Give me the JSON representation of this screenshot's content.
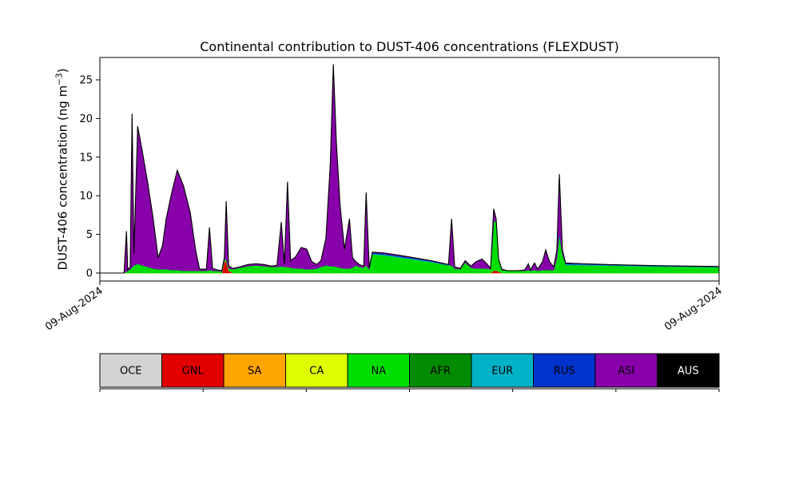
{
  "chart_data": {
    "type": "area",
    "stacked": true,
    "title": "Continental contribution to DUST-406 concentrations (FLEXDUST)",
    "xlabel": "",
    "ylabel": "DUST-406 concentration (ng m^-3)",
    "ylabel_parts": {
      "prefix": "DUST-406 concentration (ng m",
      "sup": "−3",
      "suffix": ")"
    },
    "x_tick_labels": [
      "09-Aug-2024",
      "09-Aug-2024"
    ],
    "yticks": [
      0,
      5,
      10,
      15,
      20,
      25
    ],
    "ylim": [
      -1,
      28
    ],
    "grid": false,
    "legend_position": "bottom",
    "x": [
      0.0,
      0.039,
      0.043,
      0.045,
      0.049,
      0.052,
      0.055,
      0.061,
      0.068,
      0.077,
      0.086,
      0.094,
      0.101,
      0.107,
      0.116,
      0.125,
      0.135,
      0.146,
      0.155,
      0.161,
      0.172,
      0.177,
      0.182,
      0.19,
      0.197,
      0.201,
      0.204,
      0.208,
      0.215,
      0.226,
      0.239,
      0.252,
      0.265,
      0.277,
      0.286,
      0.293,
      0.298,
      0.303,
      0.308,
      0.316,
      0.325,
      0.334,
      0.342,
      0.35,
      0.357,
      0.365,
      0.372,
      0.377,
      0.382,
      0.388,
      0.395,
      0.403,
      0.408,
      0.413,
      0.419,
      0.426,
      0.43,
      0.435,
      0.44,
      0.458,
      0.484,
      0.51,
      0.535,
      0.555,
      0.563,
      0.568,
      0.573,
      0.582,
      0.59,
      0.599,
      0.608,
      0.617,
      0.625,
      0.631,
      0.636,
      0.64,
      0.644,
      0.649,
      0.659,
      0.675,
      0.686,
      0.692,
      0.695,
      0.702,
      0.707,
      0.715,
      0.72,
      0.726,
      0.733,
      0.738,
      0.742,
      0.747,
      0.752,
      0.781,
      0.819,
      0.858,
      0.897,
      0.935,
      0.968,
      1.0
    ],
    "series": [
      {
        "name": "OCE",
        "color": "#d3d3d3",
        "values": []
      },
      {
        "name": "GNL",
        "color": "#e00000",
        "values": [
          0,
          0,
          0,
          0,
          0,
          0,
          0,
          0,
          0,
          0,
          0,
          0,
          0,
          0,
          0,
          0,
          0,
          0,
          0,
          0,
          0,
          0,
          0,
          0,
          0,
          1.5,
          1.5,
          0.3,
          0,
          0,
          0,
          0,
          0,
          0,
          0,
          0,
          0,
          0,
          0,
          0,
          0,
          0,
          0,
          0,
          0,
          0,
          0,
          0,
          0,
          0,
          0,
          0,
          0,
          0,
          0,
          0,
          0,
          0,
          0,
          0,
          0,
          0,
          0,
          0,
          0,
          0,
          0,
          0,
          0,
          0,
          0,
          0,
          0,
          0,
          0.3,
          0.3,
          0.2,
          0,
          0,
          0,
          0,
          0,
          0,
          0,
          0,
          0,
          0,
          0,
          0,
          0,
          0,
          0,
          0,
          0,
          0,
          0,
          0,
          0,
          0,
          0
        ]
      },
      {
        "name": "SA",
        "color": "#ffa500",
        "values": []
      },
      {
        "name": "CA",
        "color": "#dfff00",
        "values": []
      },
      {
        "name": "NA",
        "color": "#00dd00",
        "values": [
          0,
          0,
          0.2,
          0.3,
          0.5,
          0.8,
          1.0,
          1.2,
          1.0,
          0.8,
          0.6,
          0.5,
          0.5,
          0.5,
          0.4,
          0.4,
          0.3,
          0.3,
          0.3,
          0.3,
          0.3,
          0.4,
          0.3,
          0.3,
          0.2,
          0.2,
          0.3,
          0.3,
          0.5,
          0.7,
          0.9,
          1.0,
          0.9,
          0.8,
          0.8,
          0.9,
          0.8,
          0.8,
          0.7,
          0.6,
          0.6,
          0.5,
          0.5,
          0.6,
          0.8,
          1.0,
          0.9,
          0.9,
          0.8,
          0.7,
          0.6,
          0.6,
          0.7,
          1.0,
          0.8,
          0.7,
          1.0,
          0.5,
          2.4,
          2.3,
          2.0,
          1.7,
          1.4,
          1.1,
          1.0,
          1.0,
          0.6,
          0.5,
          1.4,
          0.7,
          0.6,
          0.6,
          0.6,
          0.5,
          6.3,
          6.5,
          1.5,
          0.4,
          0.3,
          0.3,
          0.3,
          0.4,
          0.3,
          0.4,
          0.3,
          0.4,
          0.4,
          0.4,
          0.4,
          2.0,
          5.0,
          2.5,
          1.05,
          1.0,
          0.95,
          0.9,
          0.85,
          0.8,
          0.78,
          0.75
        ]
      },
      {
        "name": "AFR",
        "color": "#008b00",
        "values": []
      },
      {
        "name": "EUR",
        "color": "#00b2c8",
        "values": [
          0,
          0,
          0,
          0,
          0,
          0,
          0,
          0,
          0,
          0,
          0,
          0,
          0,
          0,
          0,
          0,
          0,
          0,
          0,
          0,
          0,
          0,
          0,
          0,
          0,
          0,
          0,
          0,
          0,
          0,
          0,
          0,
          0,
          0,
          0,
          0,
          0,
          0,
          0,
          0,
          0,
          0,
          0,
          0,
          0,
          0,
          0,
          0,
          0,
          0,
          0,
          0,
          0,
          0,
          0,
          0,
          0,
          0,
          0.1,
          0.1,
          0.1,
          0.1,
          0.1,
          0.05,
          0.05,
          0,
          0,
          0,
          0,
          0,
          0,
          0,
          0,
          0,
          0,
          0,
          0,
          0,
          0,
          0,
          0,
          0,
          0,
          0,
          0,
          0,
          0,
          0,
          0,
          0,
          0,
          0,
          0.1,
          0.1,
          0.08,
          0.07,
          0.06,
          0.06,
          0.05,
          0.05
        ]
      },
      {
        "name": "RUS",
        "color": "#0033cc",
        "values": [
          0,
          0,
          0,
          0,
          0,
          0,
          0,
          0,
          0,
          0,
          0,
          0,
          0,
          0,
          0,
          0,
          0,
          0,
          0,
          0,
          0,
          0,
          0,
          0,
          0,
          0,
          0,
          0,
          0,
          0,
          0,
          0,
          0,
          0,
          0,
          0,
          0,
          0,
          0,
          0,
          0,
          0,
          0,
          0,
          0,
          0,
          0,
          0,
          0,
          0,
          0,
          0,
          0,
          0,
          0,
          0,
          0,
          0,
          0.1,
          0.1,
          0.1,
          0.1,
          0.05,
          0.05,
          0.05,
          0,
          0,
          0,
          0,
          0,
          0,
          0,
          0,
          0,
          0,
          0,
          0,
          0,
          0,
          0,
          0,
          0,
          0,
          0,
          0,
          0,
          0,
          0,
          0,
          0,
          0.3,
          0,
          0.1,
          0.1,
          0.07,
          0.06,
          0.05,
          0.05,
          0.05,
          0.05
        ]
      },
      {
        "name": "ASI",
        "color": "#8800aa",
        "values": [
          0,
          0,
          5.2,
          0.1,
          0.3,
          19.8,
          1.5,
          17.8,
          15,
          11,
          6.5,
          1.5,
          3,
          6.5,
          10,
          12.9,
          11,
          7.5,
          2.5,
          0.2,
          0.2,
          5.5,
          0.3,
          0.1,
          0.1,
          0.3,
          7.5,
          0.3,
          0.1,
          0.1,
          0.2,
          0.2,
          0.2,
          0.1,
          0.2,
          5.7,
          0.4,
          11.0,
          0.9,
          1.5,
          2.7,
          2.6,
          1.0,
          0.5,
          0.8,
          3.5,
          13,
          26.1,
          16,
          8,
          2.5,
          6.4,
          1.3,
          0.5,
          0.3,
          0.2,
          9.4,
          0.2,
          0.1,
          0.1,
          0.1,
          0.05,
          0.05,
          0.05,
          0,
          6.0,
          0.2,
          0.1,
          0.2,
          0.2,
          0.9,
          1.2,
          0.6,
          0.1,
          1.7,
          0.2,
          0.1,
          0.1,
          0,
          0,
          0.1,
          0.8,
          0.1,
          0.9,
          0.2,
          1.1,
          2.6,
          1.1,
          0.4,
          1.0,
          7.5,
          0.5,
          0.05,
          0,
          0,
          0,
          0,
          0,
          0,
          0
        ]
      },
      {
        "name": "AUS",
        "color": "#000000",
        "values": []
      }
    ],
    "legend": {
      "entries": [
        {
          "label": "OCE",
          "color": "#d3d3d3",
          "text_color": "#000000"
        },
        {
          "label": "GNL",
          "color": "#e00000",
          "text_color": "#000000"
        },
        {
          "label": "SA",
          "color": "#ffa500",
          "text_color": "#000000"
        },
        {
          "label": "CA",
          "color": "#dfff00",
          "text_color": "#000000"
        },
        {
          "label": "NA",
          "color": "#00dd00",
          "text_color": "#000000"
        },
        {
          "label": "AFR",
          "color": "#008b00",
          "text_color": "#000000"
        },
        {
          "label": "EUR",
          "color": "#00b2c8",
          "text_color": "#000000"
        },
        {
          "label": "RUS",
          "color": "#0033cc",
          "text_color": "#000000"
        },
        {
          "label": "ASI",
          "color": "#8800aa",
          "text_color": "#000000"
        },
        {
          "label": "AUS",
          "color": "#000000",
          "text_color": "#ffffff"
        }
      ]
    }
  }
}
